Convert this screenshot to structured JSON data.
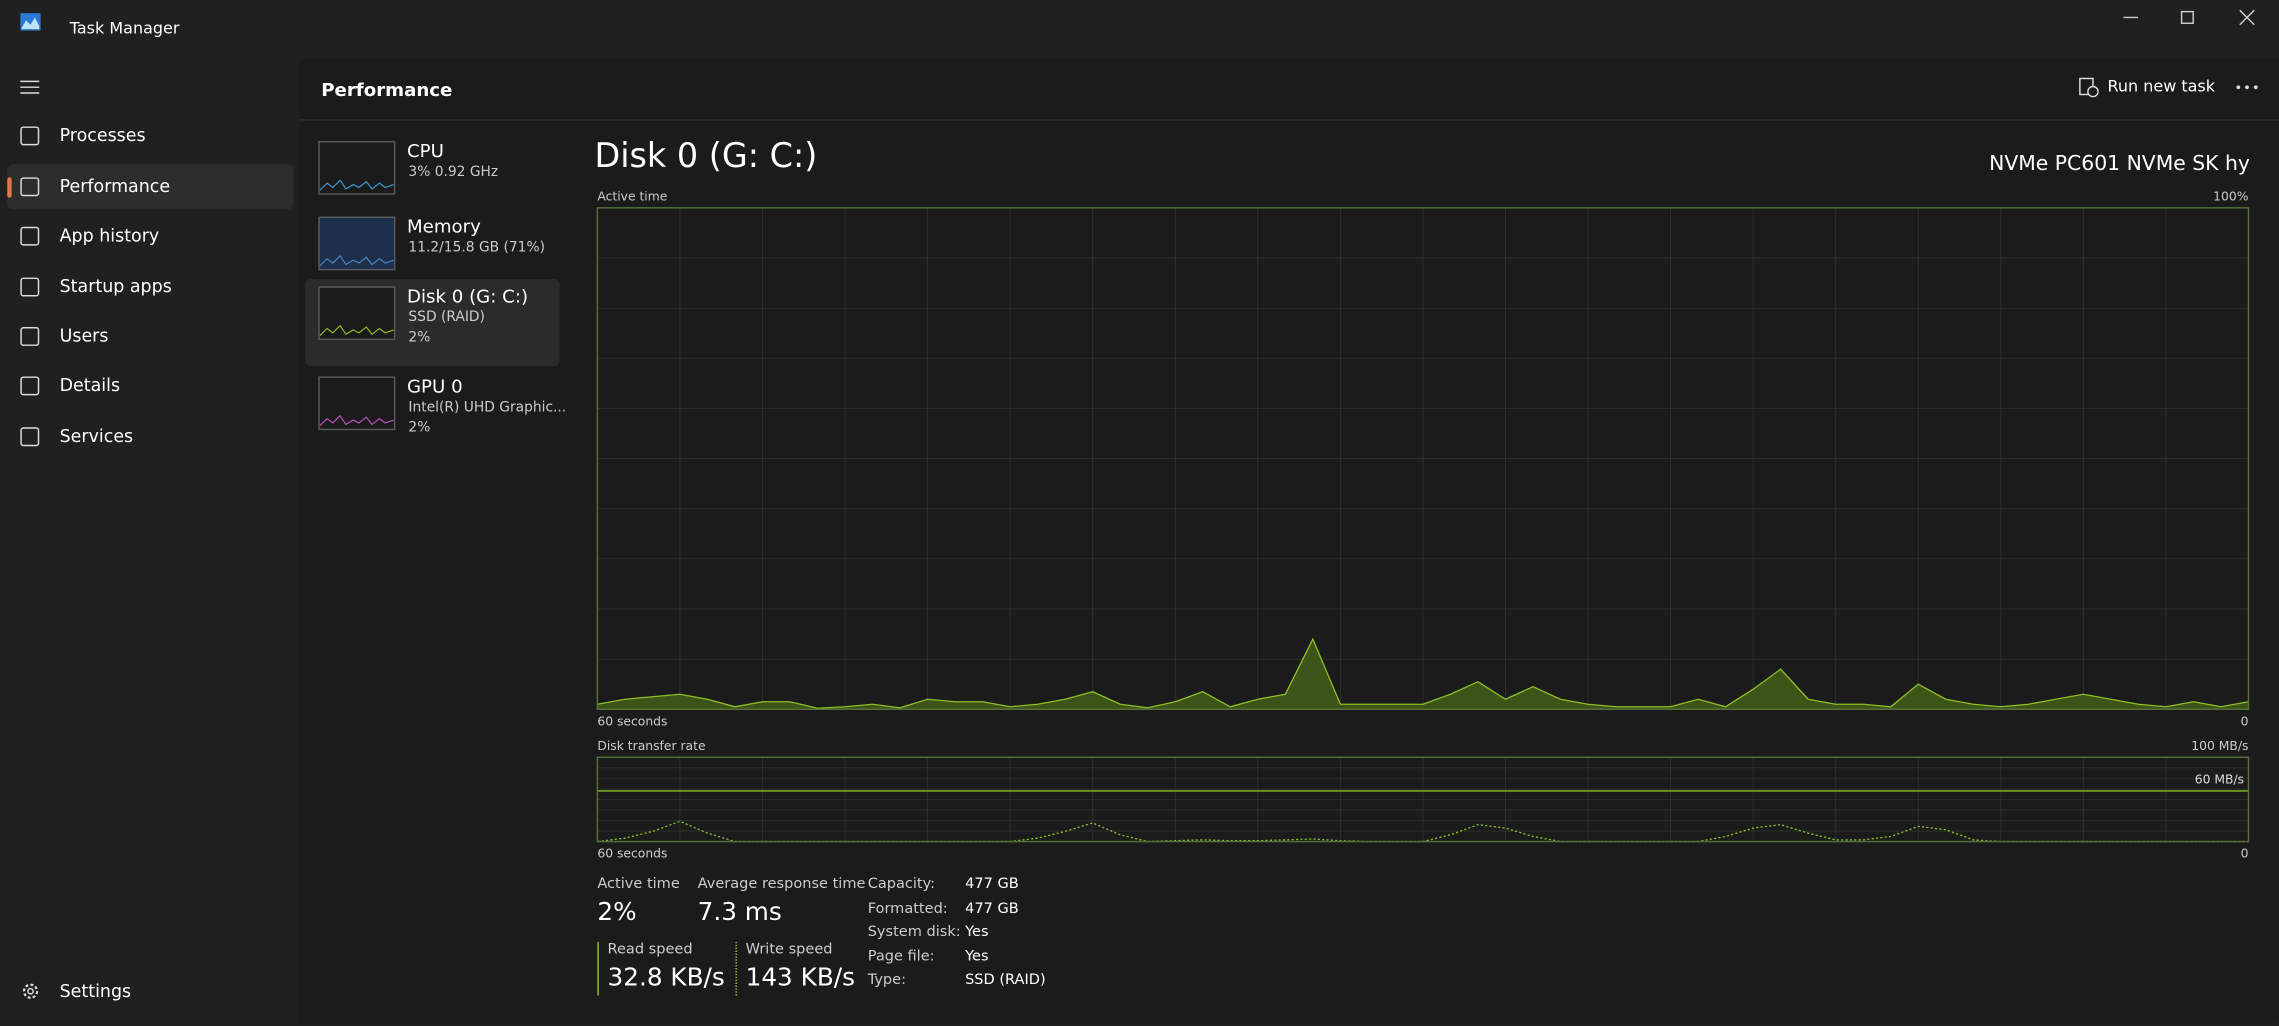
{
  "window": {
    "title": "Task Manager"
  },
  "nav": {
    "items": [
      "Processes",
      "Performance",
      "App history",
      "Startup apps",
      "Users",
      "Details",
      "Services"
    ],
    "selected": 1,
    "settings": "Settings"
  },
  "header": {
    "title": "Performance",
    "run_new_task": "Run new task"
  },
  "devices": {
    "selected": 2,
    "items": [
      {
        "name": "CPU",
        "lines": [
          "3%  0.92 GHz"
        ]
      },
      {
        "name": "Memory",
        "lines": [
          "11.2/15.8 GB (71%)"
        ]
      },
      {
        "name": "Disk 0 (G: C:)",
        "lines": [
          "SSD (RAID)",
          "2%"
        ]
      },
      {
        "name": "GPU 0",
        "lines": [
          "Intel(R) UHD Graphic...",
          "2%"
        ]
      }
    ]
  },
  "disk": {
    "title": "Disk 0 (G: C:)",
    "model": "NVMe PC601 NVMe SK hy",
    "active_chart": {
      "type": "area",
      "title": "Active time",
      "color": "#8cbf26",
      "ylim": [
        0,
        100
      ],
      "yticks": [
        {
          "value": 100,
          "label": "100%"
        }
      ],
      "xlim": [
        60,
        0
      ],
      "xticks": [
        {
          "value": 60,
          "label": "60 seconds"
        },
        {
          "value": 0,
          "label": "0"
        }
      ],
      "values": [
        1,
        2,
        2.5,
        3,
        2,
        0.5,
        1.5,
        1.5,
        0.2,
        0.5,
        1,
        0.3,
        2,
        1.5,
        1.5,
        0.5,
        1,
        2,
        3.5,
        1,
        0.3,
        1.5,
        3.5,
        0.5,
        2,
        3,
        14,
        1,
        1,
        1,
        1,
        3,
        5.5,
        2,
        4.5,
        2,
        1,
        0.5,
        0.5,
        0.5,
        2,
        0.5,
        4,
        8,
        2,
        1,
        1,
        0.5,
        5,
        2,
        1,
        0.5,
        1,
        2,
        3,
        2,
        1,
        0.5,
        1.5,
        0.5,
        1.5
      ]
    },
    "transfer_chart": {
      "type": "line",
      "title": "Disk transfer rate",
      "color": "#8cbf26",
      "ylim": [
        0,
        100
      ],
      "yticks": [
        {
          "value": 100,
          "label": "100 MB/s"
        },
        {
          "value": 60,
          "label": "60 MB/s"
        }
      ],
      "xlim": [
        60,
        0
      ],
      "xticks": [
        {
          "value": 60,
          "label": "60 seconds"
        },
        {
          "value": 0,
          "label": "0"
        }
      ],
      "values": [
        0,
        4,
        12,
        24,
        10,
        0,
        0,
        0,
        0,
        0,
        0,
        0,
        0,
        0,
        0,
        0,
        4,
        12,
        22,
        8,
        0,
        1,
        2,
        1,
        1,
        2,
        3,
        1,
        0,
        0,
        0,
        8,
        20,
        16,
        6,
        0,
        0,
        0,
        0,
        0,
        0,
        6,
        16,
        20,
        10,
        2,
        2,
        6,
        18,
        14,
        2,
        0,
        0,
        0,
        0,
        0,
        0,
        0,
        0,
        0,
        0
      ]
    },
    "stats": [
      {
        "label": "Active time",
        "value": "2%"
      },
      {
        "label": "Average response time",
        "value": "7.3 ms"
      },
      {
        "label": "Read speed",
        "value": "32.8 KB/s"
      },
      {
        "label": "Write speed",
        "value": "143 KB/s"
      }
    ],
    "properties": [
      {
        "label": "Capacity:",
        "value": "477 GB"
      },
      {
        "label": "Formatted:",
        "value": "477 GB"
      },
      {
        "label": "System disk:",
        "value": "Yes"
      },
      {
        "label": "Page file:",
        "value": "Yes"
      },
      {
        "label": "Type:",
        "value": "SSD (RAID)"
      }
    ]
  }
}
